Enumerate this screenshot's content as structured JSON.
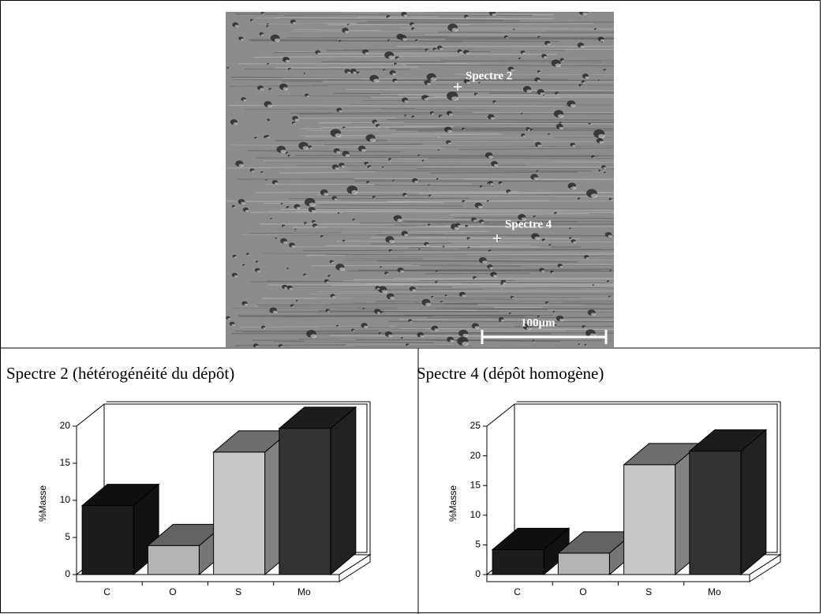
{
  "image": {
    "labels": [
      "Spectre 2",
      "Spectre 4"
    ],
    "scale": "100µm"
  },
  "chart_data": [
    {
      "type": "bar",
      "title": "Spectre 2 (hétérogénéité du dépôt)",
      "ylabel": "%Masse",
      "categories": [
        "C",
        "O",
        "S",
        "Mo"
      ],
      "values": [
        9.3,
        3.9,
        16.5,
        19.7
      ],
      "colors": [
        "#1c1c1c",
        "#b4b4b4",
        "#c8c8c8",
        "#333333"
      ],
      "ylim": [
        0,
        20
      ],
      "yticks": [
        0,
        5,
        10,
        15,
        20
      ]
    },
    {
      "type": "bar",
      "title": "Spectre 4 (dépôt homogène)",
      "ylabel": "%Masse",
      "categories": [
        "C",
        "O",
        "S",
        "Mo"
      ],
      "values": [
        4.2,
        3.6,
        18.5,
        20.8
      ],
      "colors": [
        "#1c1c1c",
        "#b4b4b4",
        "#c8c8c8",
        "#333333"
      ],
      "ylim": [
        0,
        25
      ],
      "yticks": [
        0,
        5,
        10,
        15,
        20,
        25
      ]
    }
  ]
}
